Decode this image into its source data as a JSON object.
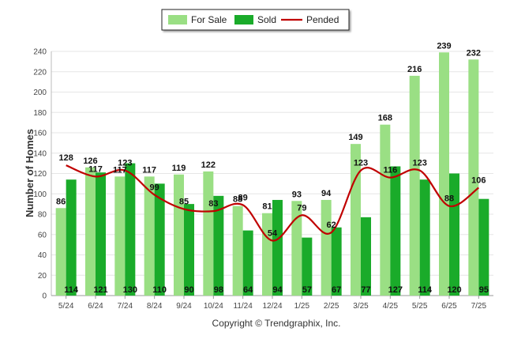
{
  "colors": {
    "for_sale": "#9adf84",
    "sold": "#1aab2a",
    "pended": "#c00000",
    "grid": "#e6e6e6"
  },
  "legend": {
    "for_sale_label": "For Sale",
    "sold_label": "Sold",
    "pended_label": "Pended"
  },
  "credit": "Copyright © Trendgraphix, Inc.",
  "chart_data": {
    "type": "bar",
    "categories": [
      "5/24",
      "6/24",
      "7/24",
      "8/24",
      "9/24",
      "10/24",
      "11/24",
      "12/24",
      "1/25",
      "2/25",
      "3/25",
      "4/25",
      "5/25",
      "6/25",
      "7/25"
    ],
    "series": [
      {
        "name": "For Sale",
        "type": "bar",
        "values": [
          86,
          126,
          117,
          117,
          119,
          122,
          88,
          81,
          93,
          94,
          149,
          168,
          216,
          239,
          232
        ]
      },
      {
        "name": "Sold",
        "type": "bar",
        "values": [
          114,
          121,
          130,
          110,
          90,
          98,
          64,
          94,
          57,
          67,
          77,
          127,
          114,
          120,
          95
        ]
      },
      {
        "name": "Pended",
        "type": "line",
        "values": [
          128,
          117,
          123,
          99,
          85,
          83,
          89,
          54,
          79,
          62,
          123,
          116,
          123,
          88,
          106
        ]
      }
    ],
    "ylabel": "Number of Homes",
    "xlabel": "",
    "ylim": [
      0,
      240
    ],
    "yticks": [
      0,
      20,
      40,
      60,
      80,
      100,
      120,
      140,
      160,
      180,
      200,
      220,
      240
    ],
    "grid": true,
    "legend_position": "top-center"
  }
}
